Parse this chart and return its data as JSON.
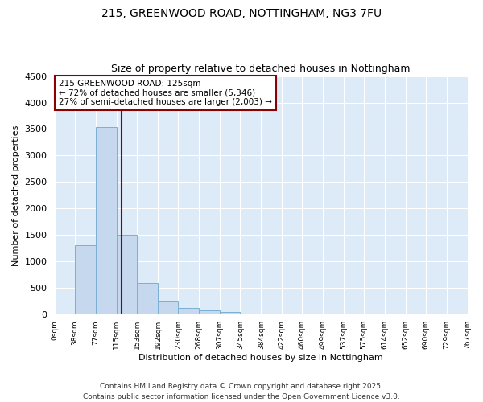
{
  "title_line1": "215, GREENWOOD ROAD, NOTTINGHAM, NG3 7FU",
  "title_line2": "Size of property relative to detached houses in Nottingham",
  "xlabel": "Distribution of detached houses by size in Nottingham",
  "ylabel": "Number of detached properties",
  "bar_edges": [
    0,
    38,
    77,
    115,
    153,
    192,
    230,
    268,
    307,
    345,
    384,
    422,
    460,
    499,
    537,
    575,
    614,
    652,
    690,
    729,
    767
  ],
  "bar_heights": [
    0,
    1300,
    3530,
    1500,
    600,
    240,
    120,
    80,
    40,
    15,
    8,
    5,
    3,
    2,
    2,
    1,
    1,
    1,
    0,
    0
  ],
  "bar_color": "#c5d8ee",
  "bar_edge_color": "#7aafd4",
  "grid_color": "#ffffff",
  "bg_color": "#ddeaf7",
  "fig_bg_color": "#ffffff",
  "property_size": 125,
  "annotation_text": "215 GREENWOOD ROAD: 125sqm\n← 72% of detached houses are smaller (5,346)\n27% of semi-detached houses are larger (2,003) →",
  "vline_color": "#8b0000",
  "annotation_box_color": "#8b0000",
  "ylim": [
    0,
    4500
  ],
  "xlim": [
    0,
    767
  ],
  "yticks": [
    0,
    500,
    1000,
    1500,
    2000,
    2500,
    3000,
    3500,
    4000,
    4500
  ],
  "tick_labels": [
    "0sqm",
    "38sqm",
    "77sqm",
    "115sqm",
    "153sqm",
    "192sqm",
    "230sqm",
    "268sqm",
    "307sqm",
    "345sqm",
    "384sqm",
    "422sqm",
    "460sqm",
    "499sqm",
    "537sqm",
    "575sqm",
    "614sqm",
    "652sqm",
    "690sqm",
    "729sqm",
    "767sqm"
  ],
  "footnote_line1": "Contains HM Land Registry data © Crown copyright and database right 2025.",
  "footnote_line2": "Contains public sector information licensed under the Open Government Licence v3.0.",
  "title1_fontsize": 10,
  "title2_fontsize": 9,
  "ylabel_fontsize": 8,
  "xlabel_fontsize": 8,
  "footnote_fontsize": 6.5
}
